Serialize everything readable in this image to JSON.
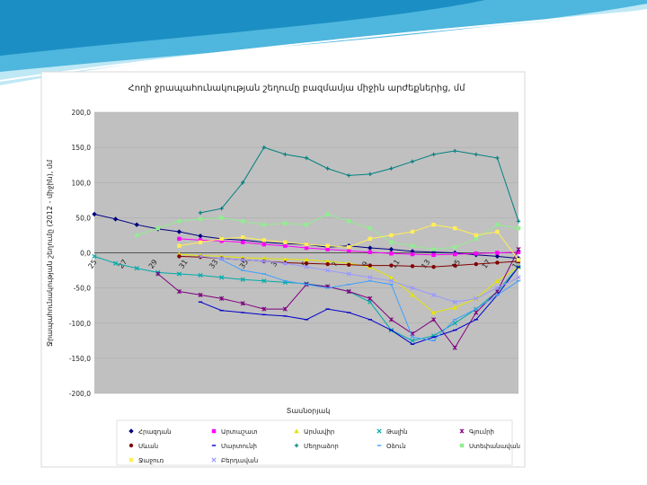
{
  "chart_data": {
    "type": "line",
    "title": "Հողի ջրապահունակության շեղումը բազմամյա միջին արժեքներից, մմ",
    "xlabel": "Տասնօրյակ",
    "ylabel": "Ջրապահունակության շեղումը (2012 - միջին), մմ",
    "ylim": [
      -200,
      200
    ],
    "yticks": [
      -200,
      -150,
      -100,
      -50,
      0,
      50,
      100,
      150,
      200
    ],
    "ytick_labels": [
      "-200,0",
      "-150,0",
      "-100,0",
      "-50,0",
      "0,0",
      "50,0",
      "100,0",
      "150,0",
      "200,0"
    ],
    "xlim": [
      25,
      45
    ],
    "xtick_labels": [
      "25",
      "27",
      "29",
      "31",
      "33",
      "35",
      "3",
      "5",
      "7",
      "9",
      "11",
      "13",
      "15",
      "17",
      "19"
    ],
    "grid": true,
    "legend_position": "bottom",
    "series": [
      {
        "name": "Հրազդան",
        "color": "#000080",
        "marker": "diamond",
        "x": [
          25,
          26,
          27,
          28,
          29,
          30,
          31,
          32,
          33,
          34,
          35,
          36,
          37,
          38,
          39,
          40,
          41,
          42,
          43,
          44,
          45
        ],
        "y": [
          55,
          48,
          40,
          34,
          30,
          24,
          20,
          18,
          15,
          13,
          12,
          8,
          10,
          7,
          5,
          2,
          1,
          0,
          -3,
          -5,
          -8
        ]
      },
      {
        "name": "Արտաշատ",
        "color": "#ff00ff",
        "marker": "square",
        "x": [
          29,
          30,
          31,
          32,
          33,
          34,
          35,
          36,
          37,
          38,
          39,
          40,
          41,
          42,
          43,
          44,
          45
        ],
        "y": [
          20,
          18,
          17,
          15,
          12,
          10,
          7,
          5,
          3,
          1,
          -1,
          -2,
          -3,
          -2,
          -1,
          0,
          1
        ]
      },
      {
        "name": "Արմավիր",
        "color": "#e5e500",
        "marker": "triangle",
        "x": [
          29,
          30,
          31,
          32,
          33,
          34,
          35,
          36,
          37,
          38,
          39,
          40,
          41,
          42,
          43,
          44,
          45
        ],
        "y": [
          -2,
          -4,
          -5,
          -7,
          -8,
          -9,
          -10,
          -12,
          -15,
          -20,
          -35,
          -60,
          -85,
          -78,
          -65,
          -40,
          -20
        ]
      },
      {
        "name": "Թալին",
        "color": "#00aaaa",
        "marker": "x",
        "x": [
          25,
          26,
          27,
          28,
          29,
          30,
          31,
          32,
          33,
          34,
          35,
          36,
          37,
          38,
          39,
          40,
          41,
          42,
          43,
          44,
          45
        ],
        "y": [
          -5,
          -15,
          -22,
          -28,
          -30,
          -32,
          -35,
          -38,
          -40,
          -42,
          -44,
          -48,
          -55,
          -70,
          -110,
          -125,
          -118,
          -100,
          -80,
          -55,
          -20
        ]
      },
      {
        "name": "Գյումրի",
        "color": "#800080",
        "marker": "star",
        "x": [
          28,
          29,
          30,
          31,
          32,
          33,
          34,
          35,
          36,
          37,
          38,
          39,
          40,
          41,
          42,
          43,
          44,
          45
        ],
        "y": [
          -30,
          -55,
          -60,
          -65,
          -72,
          -80,
          -80,
          -45,
          -48,
          -55,
          -65,
          -95,
          -115,
          -95,
          -135,
          -85,
          -55,
          5
        ]
      },
      {
        "name": "Սևան",
        "color": "#800000",
        "marker": "circle",
        "x": [
          29,
          30,
          31,
          32,
          33,
          34,
          35,
          36,
          37,
          38,
          39,
          40,
          41,
          42,
          43,
          44,
          45
        ],
        "y": [
          -5,
          -6,
          -8,
          -10,
          -12,
          -14,
          -15,
          -16,
          -17,
          -18,
          -18,
          -19,
          -20,
          -18,
          -16,
          -14,
          -12
        ]
      },
      {
        "name": "Մարտունի",
        "color": "#0000cc",
        "marker": "dash",
        "x": [
          30,
          31,
          32,
          33,
          34,
          35,
          36,
          37,
          38,
          39,
          40,
          41,
          42,
          43,
          44,
          45
        ],
        "y": [
          -70,
          -82,
          -85,
          -88,
          -90,
          -95,
          -80,
          -85,
          -95,
          -110,
          -130,
          -120,
          -110,
          -95,
          -60,
          -20
        ]
      },
      {
        "name": "Մեղրաձոր",
        "color": "#008080",
        "marker": "plus",
        "x": [
          30,
          31,
          32,
          33,
          34,
          35,
          36,
          37,
          38,
          39,
          40,
          41,
          42,
          43,
          44,
          45
        ],
        "y": [
          57,
          63,
          100,
          150,
          140,
          135,
          120,
          110,
          112,
          120,
          130,
          140,
          145,
          140,
          135,
          45
        ]
      },
      {
        "name": "Օձուն",
        "color": "#40a0ff",
        "marker": "dash",
        "x": [
          31,
          32,
          33,
          34,
          35,
          36,
          37,
          38,
          39,
          40,
          41,
          42,
          43,
          44,
          45
        ],
        "y": [
          -10,
          -25,
          -30,
          -40,
          -45,
          -50,
          -45,
          -40,
          -45,
          -120,
          -125,
          -95,
          -80,
          -60,
          -40
        ]
      },
      {
        "name": "Ստեփանավան",
        "color": "#90ee90",
        "marker": "square",
        "x": [
          27,
          28,
          29,
          30,
          31,
          32,
          33,
          34,
          35,
          36,
          37,
          38,
          39,
          40,
          41,
          42,
          43,
          44,
          45
        ],
        "y": [
          25,
          35,
          45,
          48,
          50,
          45,
          40,
          42,
          40,
          55,
          45,
          35,
          15,
          10,
          5,
          8,
          20,
          40,
          35
        ]
      },
      {
        "name": "Ջաջուռ",
        "color": "#ffee55",
        "marker": "square",
        "x": [
          29,
          30,
          31,
          32,
          33,
          34,
          35,
          36,
          37,
          38,
          39,
          40,
          41,
          42,
          43,
          44,
          45
        ],
        "y": [
          10,
          15,
          20,
          22,
          18,
          15,
          12,
          10,
          8,
          20,
          25,
          30,
          40,
          35,
          25,
          30,
          -10
        ]
      },
      {
        "name": "Բերդավան",
        "color": "#9999ff",
        "marker": "x",
        "x": [
          30,
          31,
          32,
          33,
          34,
          35,
          36,
          37,
          38,
          39,
          40,
          41,
          42,
          43,
          44,
          45
        ],
        "y": [
          -5,
          -8,
          -10,
          -12,
          -15,
          -20,
          -25,
          -30,
          -35,
          -40,
          -50,
          -60,
          -70,
          -65,
          -50,
          -35
        ]
      }
    ]
  }
}
